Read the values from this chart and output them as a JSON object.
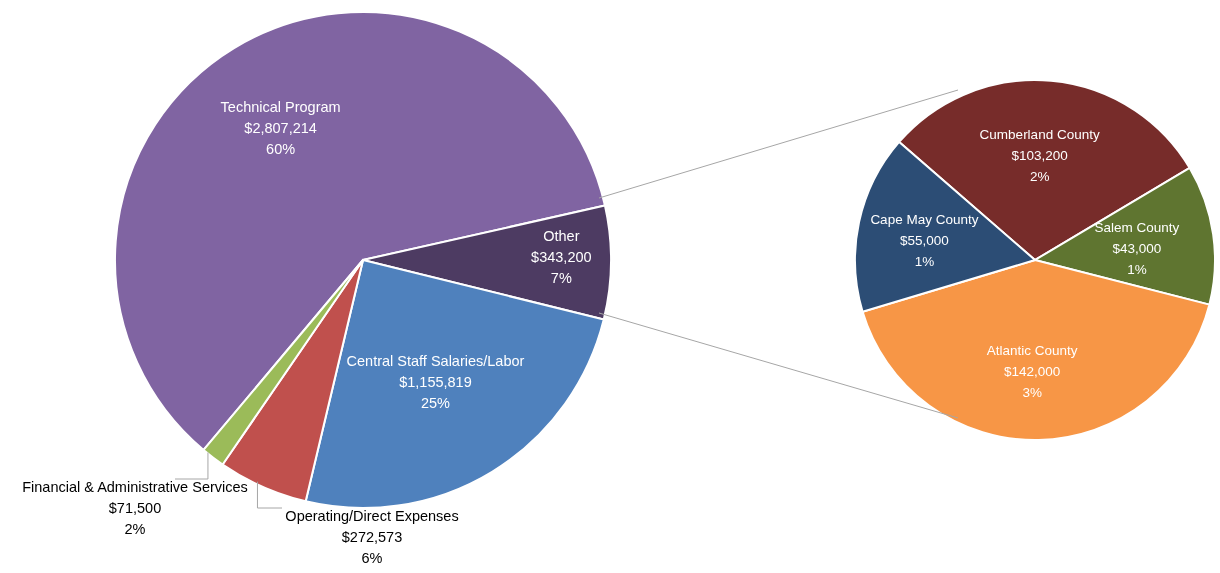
{
  "chart_data": [
    {
      "type": "pie",
      "categories": [
        "Technical Program",
        "Other",
        "Central Staff Salaries/Labor",
        "Operating/Direct Expenses",
        "Financial & Administrative Services"
      ],
      "values": [
        2807214,
        343200,
        1155819,
        272573,
        71500
      ],
      "colors": [
        "#8064a2",
        "#4d3b62",
        "#4f81bd",
        "#c0504d",
        "#9bbb59"
      ],
      "value_labels": [
        "$2,807,214\n60%",
        "$343,200\n7%",
        "$1,155,819\n25%",
        "$272,573\n6%",
        "$71,500\n2%"
      ]
    },
    {
      "type": "pie",
      "categories": [
        "Cumberland County",
        "Salem County",
        "Atlantic County",
        "Cape May County"
      ],
      "values": [
        103200,
        43000,
        142000,
        55000
      ],
      "colors": [
        "#772c2a",
        "#5f7530",
        "#f79646",
        "#2c4d75"
      ],
      "value_labels": [
        "$103,200\n2%",
        "$43,000\n1%",
        "$142,000\n3%",
        "$55,000\n1%"
      ]
    }
  ]
}
